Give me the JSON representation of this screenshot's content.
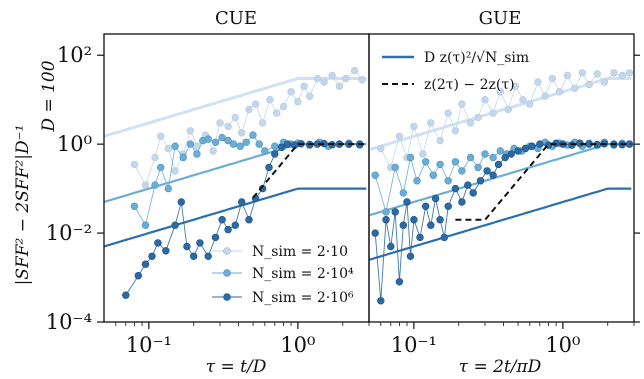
{
  "figure": {
    "ylabel": "|SFF² − 2SFF²|D⁻¹",
    "side_label": "D = 100"
  },
  "chart_data": [
    {
      "type": "scatter",
      "title": "CUE",
      "xlabel": "τ = t/D",
      "x_scale": "log",
      "y_scale": "log",
      "xlim": [
        0.05,
        3.0
      ],
      "ylim": [
        0.0001,
        300
      ],
      "x_ticks": [
        0.1,
        1.0
      ],
      "x_tick_labels": [
        "10⁻¹",
        "10⁰"
      ],
      "y_ticks": [
        0.0001,
        0.01,
        1,
        100
      ],
      "y_tick_labels": [
        "10⁻⁴",
        "10⁻²",
        "10⁰",
        "10²"
      ],
      "legend": {
        "placement": "lower-right",
        "entries": [
          "N_sim = 2·10",
          "N_sim = 2·10⁴",
          "N_sim = 2·10⁶"
        ]
      },
      "series": [
        {
          "name": "N_sim = 2·10",
          "color": "#c3d7ec",
          "points": [
            [
              0.08,
              0.35
            ],
            [
              0.095,
              0.12
            ],
            [
              0.11,
              0.5
            ],
            [
              0.12,
              1.5
            ],
            [
              0.135,
              0.8
            ],
            [
              0.15,
              0.25
            ],
            [
              0.17,
              0.6
            ],
            [
              0.19,
              2.0
            ],
            [
              0.21,
              0.9
            ],
            [
              0.24,
              1.6
            ],
            [
              0.27,
              0.7
            ],
            [
              0.3,
              3.0
            ],
            [
              0.34,
              2.5
            ],
            [
              0.38,
              4.0
            ],
            [
              0.42,
              1.8
            ],
            [
              0.47,
              6.0
            ],
            [
              0.52,
              8.0
            ],
            [
              0.58,
              3.0
            ],
            [
              0.65,
              10.0
            ],
            [
              0.72,
              5.0
            ],
            [
              0.8,
              7.0
            ],
            [
              0.9,
              15.0
            ],
            [
              1.0,
              9.0
            ],
            [
              1.1,
              20.0
            ],
            [
              1.2,
              12.0
            ],
            [
              1.35,
              30.0
            ],
            [
              1.5,
              25.0
            ],
            [
              1.7,
              35.0
            ],
            [
              1.9,
              20.0
            ],
            [
              2.1,
              30.0
            ],
            [
              2.4,
              45.0
            ],
            [
              2.7,
              28.0
            ]
          ]
        },
        {
          "name": "N_sim = 2·10⁴",
          "color": "#6aaed6",
          "points": [
            [
              0.08,
              0.04
            ],
            [
              0.095,
              0.015
            ],
            [
              0.11,
              0.12
            ],
            [
              0.12,
              0.3
            ],
            [
              0.135,
              0.1
            ],
            [
              0.15,
              0.9
            ],
            [
              0.17,
              0.5
            ],
            [
              0.19,
              1.0
            ],
            [
              0.21,
              0.6
            ],
            [
              0.23,
              1.2
            ],
            [
              0.25,
              1.3
            ],
            [
              0.28,
              1.1
            ],
            [
              0.31,
              1.4
            ],
            [
              0.34,
              1.2
            ],
            [
              0.37,
              1.0
            ],
            [
              0.41,
              0.9
            ],
            [
              0.45,
              1.1
            ],
            [
              0.5,
              1.6
            ],
            [
              0.55,
              1.0
            ],
            [
              0.6,
              0.7
            ],
            [
              0.7,
              0.9
            ],
            [
              0.8,
              1.1
            ],
            [
              0.9,
              1.0
            ],
            [
              1.0,
              1.05
            ],
            [
              1.2,
              0.95
            ],
            [
              1.4,
              1.1
            ],
            [
              1.6,
              0.9
            ],
            [
              1.9,
              1.0
            ],
            [
              2.2,
              1.05
            ],
            [
              2.6,
              0.95
            ]
          ]
        },
        {
          "name": "N_sim = 2·10⁶",
          "color": "#2b6aa4",
          "points": [
            [
              0.07,
              0.0004
            ],
            [
              0.085,
              0.0011
            ],
            [
              0.095,
              0.002
            ],
            [
              0.105,
              0.003
            ],
            [
              0.115,
              0.006
            ],
            [
              0.13,
              0.004
            ],
            [
              0.15,
              0.015
            ],
            [
              0.165,
              0.05
            ],
            [
              0.18,
              0.005
            ],
            [
              0.2,
              0.003
            ],
            [
              0.22,
              0.006
            ],
            [
              0.25,
              0.003
            ],
            [
              0.28,
              0.008
            ],
            [
              0.31,
              0.02
            ],
            [
              0.34,
              0.012
            ],
            [
              0.38,
              0.015
            ],
            [
              0.42,
              0.05
            ],
            [
              0.47,
              0.02
            ],
            [
              0.52,
              0.06
            ],
            [
              0.58,
              0.1
            ],
            [
              0.64,
              0.3
            ],
            [
              0.7,
              0.6
            ],
            [
              0.78,
              0.85
            ],
            [
              0.85,
              1.0
            ],
            [
              0.95,
              0.95
            ],
            [
              1.05,
              1.02
            ],
            [
              1.2,
              0.98
            ],
            [
              1.35,
              1.0
            ],
            [
              1.5,
              1.03
            ],
            [
              1.7,
              0.97
            ],
            [
              1.9,
              1.0
            ],
            [
              2.2,
              0.99
            ],
            [
              2.6,
              1.0
            ]
          ]
        }
      ]
    },
    {
      "type": "scatter",
      "title": "GUE",
      "xlabel": "τ = 2t/πD",
      "x_scale": "log",
      "y_scale": "log",
      "xlim": [
        0.05,
        3.0
      ],
      "ylim": [
        0.0001,
        300
      ],
      "x_ticks": [
        0.1,
        1.0
      ],
      "x_tick_labels": [
        "10⁻¹",
        "10⁰"
      ],
      "legend": {
        "placement": "top-left",
        "entries": [
          "D z(τ)²/√N_sim",
          "z(2τ) − 2z(τ)"
        ]
      },
      "series": [
        {
          "name": "N_sim = 2·10",
          "color": "#c3d7ec",
          "points": [
            [
              0.06,
              0.8
            ],
            [
              0.07,
              0.3
            ],
            [
              0.08,
              1.5
            ],
            [
              0.09,
              0.5
            ],
            [
              0.1,
              2.5
            ],
            [
              0.115,
              0.6
            ],
            [
              0.13,
              3.0
            ],
            [
              0.15,
              1.2
            ],
            [
              0.17,
              5.0
            ],
            [
              0.19,
              2.0
            ],
            [
              0.21,
              8.0
            ],
            [
              0.24,
              3.0
            ],
            [
              0.27,
              4.0
            ],
            [
              0.3,
              10.0
            ],
            [
              0.34,
              5.0
            ],
            [
              0.38,
              15.0
            ],
            [
              0.43,
              6.0
            ],
            [
              0.48,
              20.0
            ],
            [
              0.54,
              10.0
            ],
            [
              0.6,
              8.0
            ],
            [
              0.68,
              25.0
            ],
            [
              0.76,
              12.0
            ],
            [
              0.85,
              30.0
            ],
            [
              0.95,
              15.0
            ],
            [
              1.07,
              35.0
            ],
            [
              1.2,
              18.0
            ],
            [
              1.35,
              40.0
            ],
            [
              1.5,
              22.0
            ],
            [
              1.7,
              38.0
            ],
            [
              1.9,
              25.0
            ],
            [
              2.2,
              40.0
            ],
            [
              2.5,
              35.0
            ],
            [
              2.8,
              40.0
            ]
          ]
        },
        {
          "name": "N_sim = 2·10⁴",
          "color": "#6aaed6",
          "points": [
            [
              0.055,
              0.2
            ],
            [
              0.065,
              0.03
            ],
            [
              0.075,
              0.3
            ],
            [
              0.085,
              0.08
            ],
            [
              0.095,
              0.5
            ],
            [
              0.105,
              0.15
            ],
            [
              0.12,
              0.4
            ],
            [
              0.135,
              0.2
            ],
            [
              0.15,
              0.35
            ],
            [
              0.17,
              0.15
            ],
            [
              0.19,
              0.4
            ],
            [
              0.21,
              0.25
            ],
            [
              0.24,
              0.5
            ],
            [
              0.27,
              0.3
            ],
            [
              0.3,
              0.6
            ],
            [
              0.34,
              0.5
            ],
            [
              0.38,
              0.7
            ],
            [
              0.42,
              0.6
            ],
            [
              0.47,
              0.8
            ],
            [
              0.53,
              0.7
            ],
            [
              0.6,
              0.9
            ],
            [
              0.68,
              0.8
            ],
            [
              0.76,
              1.1
            ],
            [
              0.85,
              0.9
            ],
            [
              0.95,
              1.05
            ],
            [
              1.07,
              0.95
            ],
            [
              1.2,
              1.1
            ],
            [
              1.35,
              0.9
            ],
            [
              1.5,
              1.05
            ],
            [
              1.7,
              0.95
            ],
            [
              1.9,
              1.1
            ],
            [
              2.2,
              0.95
            ],
            [
              2.5,
              1.05
            ],
            [
              2.8,
              1.0
            ]
          ]
        },
        {
          "name": "N_sim = 2·10⁶",
          "color": "#2b6aa4",
          "points": [
            [
              0.055,
              0.01
            ],
            [
              0.06,
              0.0003
            ],
            [
              0.065,
              0.02
            ],
            [
              0.07,
              0.005
            ],
            [
              0.075,
              0.03
            ],
            [
              0.08,
              0.0008
            ],
            [
              0.085,
              0.015
            ],
            [
              0.09,
              0.05
            ],
            [
              0.095,
              0.003
            ],
            [
              0.1,
              0.02
            ],
            [
              0.11,
              0.008
            ],
            [
              0.12,
              0.04
            ],
            [
              0.13,
              0.015
            ],
            [
              0.14,
              0.06
            ],
            [
              0.15,
              0.02
            ],
            [
              0.16,
              0.008
            ],
            [
              0.17,
              0.04
            ],
            [
              0.19,
              0.1
            ],
            [
              0.21,
              0.05
            ],
            [
              0.23,
              0.12
            ],
            [
              0.25,
              0.08
            ],
            [
              0.28,
              0.15
            ],
            [
              0.31,
              0.25
            ],
            [
              0.34,
              0.2
            ],
            [
              0.37,
              0.35
            ],
            [
              0.41,
              0.5
            ],
            [
              0.45,
              0.6
            ],
            [
              0.5,
              0.7
            ],
            [
              0.56,
              0.8
            ],
            [
              0.62,
              0.9
            ],
            [
              0.7,
              1.0
            ],
            [
              0.8,
              0.95
            ],
            [
              0.9,
              1.05
            ],
            [
              1.0,
              1.0
            ],
            [
              1.15,
              0.95
            ],
            [
              1.3,
              1.05
            ],
            [
              1.5,
              1.0
            ],
            [
              1.7,
              0.98
            ],
            [
              1.9,
              1.02
            ],
            [
              2.2,
              1.0
            ],
            [
              2.5,
              0.97
            ],
            [
              2.8,
              1.0
            ]
          ]
        }
      ]
    }
  ]
}
